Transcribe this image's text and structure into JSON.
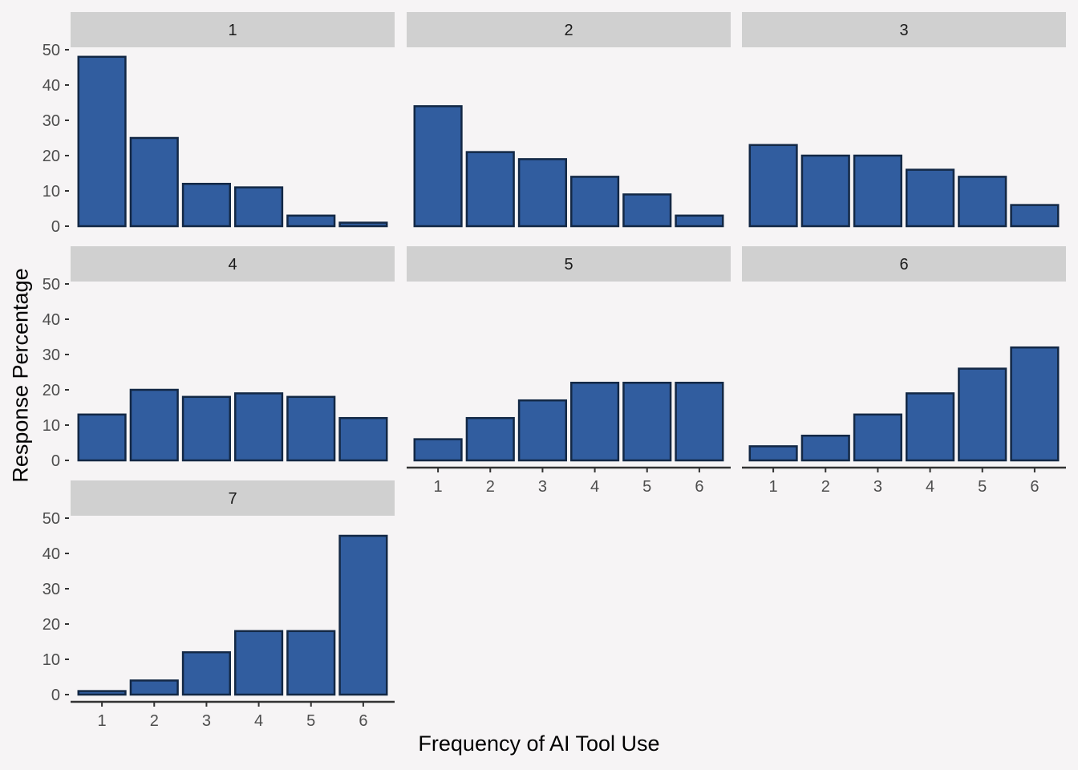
{
  "chart_data": {
    "type": "bar",
    "xlabel": "Frequency of AI Tool Use",
    "ylabel": "Response Percentage",
    "ylim": [
      0,
      55
    ],
    "y_ticks": [
      0,
      10,
      20,
      30,
      40,
      50
    ],
    "categories": [
      "1",
      "2",
      "3",
      "4",
      "5",
      "6"
    ],
    "grid": false,
    "colors": {
      "bar_fill": "#315d9f",
      "bar_stroke": "#132845",
      "strip": "#d0d0d0",
      "background": "#f6f4f5",
      "axis": "#333333"
    },
    "facets": [
      {
        "label": "1",
        "values": [
          48,
          25,
          12,
          11,
          3,
          1
        ]
      },
      {
        "label": "2",
        "values": [
          34,
          21,
          19,
          14,
          9,
          3
        ]
      },
      {
        "label": "3",
        "values": [
          23,
          20,
          20,
          16,
          14,
          6
        ]
      },
      {
        "label": "4",
        "values": [
          13,
          20,
          18,
          19,
          18,
          12
        ]
      },
      {
        "label": "5",
        "values": [
          6,
          12,
          17,
          22,
          22,
          22
        ]
      },
      {
        "label": "6",
        "values": [
          4,
          7,
          13,
          19,
          26,
          32
        ]
      },
      {
        "label": "7",
        "values": [
          1,
          4,
          12,
          18,
          18,
          45
        ]
      }
    ]
  }
}
